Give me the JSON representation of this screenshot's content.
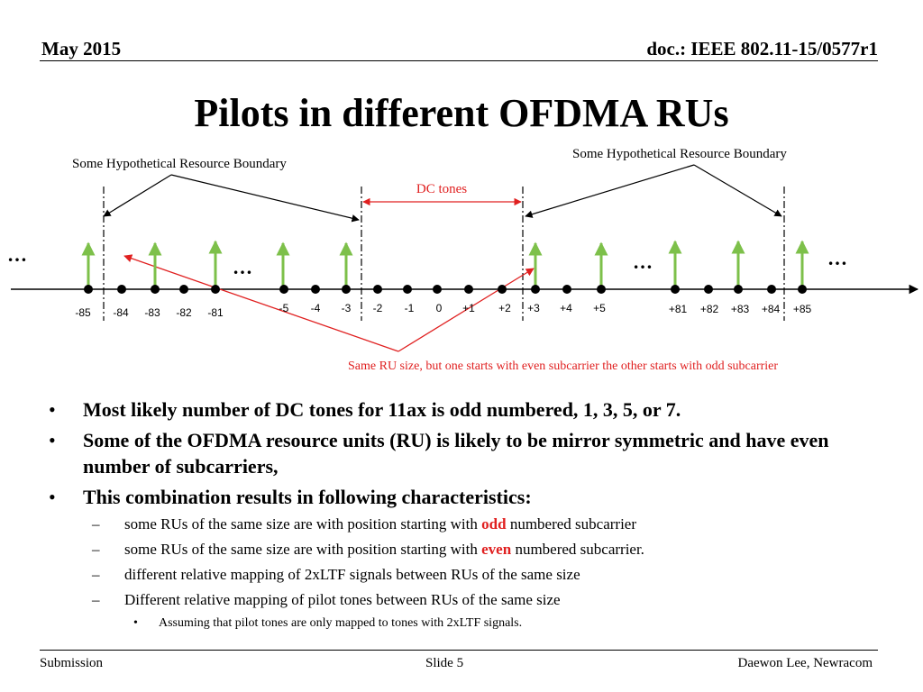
{
  "header": {
    "date": "May 2015",
    "doc": "doc.: IEEE 802.11-15/0577r1"
  },
  "title": "Pilots in different OFDMA RUs",
  "diagram": {
    "boundary_label_left": "Some Hypothetical Resource Boundary",
    "boundary_label_right": "Some Hypothetical Resource Boundary",
    "dc_label": "DC tones",
    "note": "Same RU size, but one starts with even subcarrier the other starts with odd subcarrier",
    "ellipsis": "…",
    "colors": {
      "pilot": "#7dc04a",
      "annotation": "#e02020",
      "axis": "#000000"
    },
    "ticks": [
      "-85",
      "-84",
      "-83",
      "-82",
      "-81",
      "-5",
      "-4",
      "-3",
      "-2",
      "-1",
      "0",
      "+1",
      "+2",
      "+3",
      "+4",
      "+5",
      "+81",
      "+82",
      "+83",
      "+84",
      "+85"
    ]
  },
  "bullets": [
    "Most likely number of DC tones for 11ax is odd numbered, 1, 3, 5, or 7.",
    "Some of the OFDMA resource units (RU) is likely to be mirror symmetric and have even number of subcarriers,",
    "This combination results in following characteristics:"
  ],
  "sub_bullets": [
    {
      "before": "some RUs of the same size are with position starting with ",
      "highlight": "odd",
      "after": " numbered subcarrier"
    },
    {
      "before": "some RUs of the same size are with position starting with ",
      "highlight": "even",
      "after": " numbered subcarrier."
    },
    {
      "text": "different relative mapping of 2xLTF signals between RUs of the same size"
    },
    {
      "text": "Different relative mapping of pilot tones between RUs of the same size"
    }
  ],
  "sub_sub_bullets": [
    "Assuming that pilot tones are only mapped to tones with 2xLTF signals."
  ],
  "footer": {
    "left": "Submission",
    "center": "Slide 5",
    "right": "Daewon Lee, Newracom"
  }
}
